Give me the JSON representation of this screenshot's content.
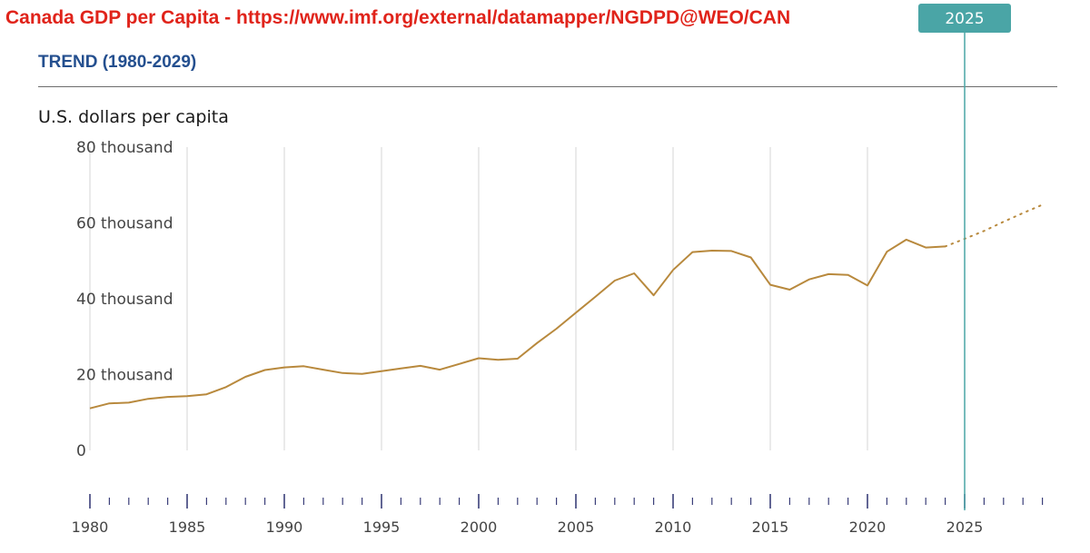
{
  "header": {
    "title": "Canada GDP per Capita - https://www.imf.org/external/datamapper/NGDPD@WEO/CAN",
    "subtitle": "TREND (1980-2029)",
    "units": "U.S. dollars per capita"
  },
  "colors": {
    "title": "#e0231a",
    "subtitle": "#244f8f",
    "line": "#b8893d",
    "marker": "#4aa5a6",
    "grid": "#d6d6d6",
    "axis_ticks": "#3b3f7a"
  },
  "chart_data": {
    "type": "line",
    "title": "Canada GDP per Capita - https://www.imf.org/external/datamapper/NGDPD@WEO/CAN",
    "subtitle": "TREND (1980-2029)",
    "ylabel": "U.S. dollars per capita",
    "xlabel": "",
    "xlim": [
      1980,
      2029
    ],
    "ylim": [
      0,
      80000
    ],
    "y_ticks": [
      0,
      20000,
      40000,
      60000,
      80000
    ],
    "y_tick_labels": [
      "0",
      "20 thousand",
      "40 thousand",
      "60 thousand",
      "80 thousand"
    ],
    "x_ticks": [
      1980,
      1985,
      1990,
      1995,
      2000,
      2005,
      2010,
      2015,
      2020,
      2025
    ],
    "x_tick_labels": [
      "1980",
      "1985",
      "1990",
      "1995",
      "2000",
      "2005",
      "2010",
      "2015",
      "2020",
      "2025"
    ],
    "grid": "vertical",
    "marker_year": 2025,
    "marker_label": "2025",
    "series": [
      {
        "style": "solid",
        "x": [
          1980,
          1981,
          1982,
          1983,
          1984,
          1985,
          1986,
          1987,
          1988,
          1989,
          1990,
          1991,
          1992,
          1993,
          1994,
          1995,
          1996,
          1997,
          1998,
          1999,
          2000,
          2001,
          2002,
          2003,
          2004,
          2005,
          2006,
          2007,
          2008,
          2009,
          2010,
          2011,
          2012,
          2013,
          2014,
          2015,
          2016,
          2017,
          2018,
          2019,
          2020,
          2021,
          2022,
          2023,
          2024
        ],
        "values": [
          11100,
          12400,
          12600,
          13600,
          14100,
          14300,
          14800,
          16700,
          19400,
          21200,
          21900,
          22200,
          21300,
          20400,
          20200,
          20900,
          21600,
          22300,
          21300,
          22800,
          24300,
          23900,
          24200,
          28300,
          32100,
          36300,
          40500,
          44800,
          46700,
          40900,
          47600,
          52300,
          52700,
          52600,
          50900,
          43700,
          42400,
          45100,
          46500,
          46300,
          43500,
          52400,
          55600,
          53500,
          53800
        ]
      },
      {
        "style": "dotted",
        "x": [
          2024,
          2025,
          2026,
          2027,
          2028,
          2029
        ],
        "values": [
          53800,
          55800,
          57900,
          60300,
          62600,
          64800
        ]
      }
    ]
  }
}
